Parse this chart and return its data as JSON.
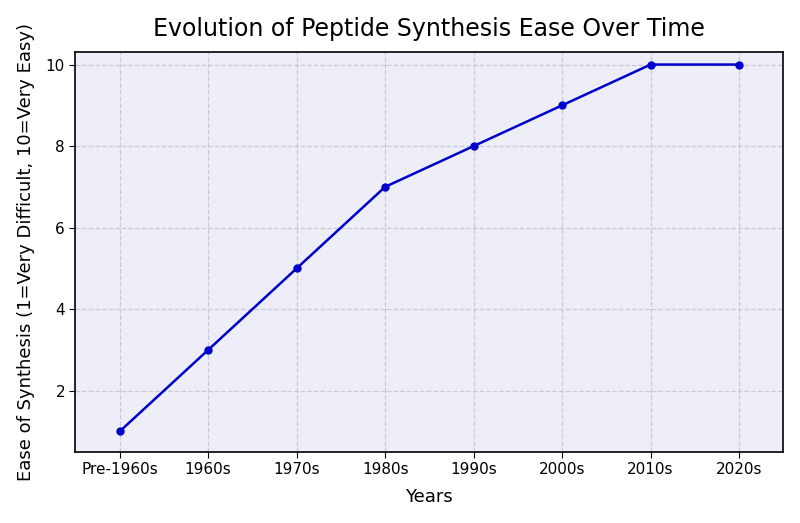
{
  "title": "Evolution of Peptide Synthesis Ease Over Time",
  "xlabel": "Years",
  "ylabel": "Ease of Synthesis (1=Very Difficult, 10=Very Easy)",
  "x_labels": [
    "Pre-1960s",
    "1960s",
    "1970s",
    "1980s",
    "1990s",
    "2000s",
    "2010s",
    "2020s"
  ],
  "y_values": [
    1,
    3,
    5,
    7,
    8,
    9,
    10,
    10
  ],
  "line_color": "#0000CD",
  "marker": "o",
  "marker_color": "#0000CD",
  "marker_size": 5,
  "linewidth": 1.8,
  "ylim": [
    0.5,
    10.3
  ],
  "yticks": [
    2,
    4,
    6,
    8,
    10
  ],
  "grid_color": "#c8c8d8",
  "grid_style": "--",
  "grid_alpha": 1.0,
  "plot_bg_color": "#eeeef8",
  "fig_bg_color": "#ffffff",
  "title_fontsize": 17,
  "label_fontsize": 13,
  "tick_fontsize": 11
}
